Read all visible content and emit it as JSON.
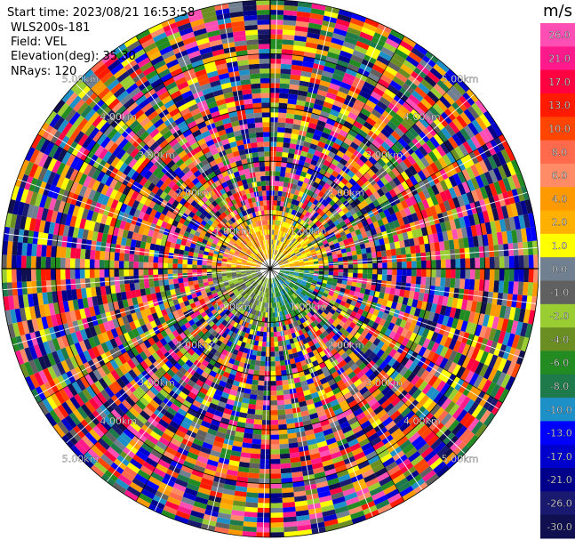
{
  "info": {
    "start_time": "Start time: 2023/08/21 16:53:58",
    "instrument": "WLS200s-181",
    "field": "Field: VEL",
    "elevation": "Elevation(deg): 35.30",
    "nrays": "NRays: 120"
  },
  "colorbar": {
    "unit": "m/s",
    "ticks": [
      "26.0",
      "21.0",
      "17.0",
      "13.0",
      "10.0",
      "8.0",
      "6.0",
      "4.0",
      "2.0",
      "1.0",
      "0.0",
      "-1.0",
      "-2.0",
      "-4.0",
      "-6.0",
      "-8.0",
      "-10.0",
      "-13.0",
      "-17.0",
      "-21.0",
      "-26.0",
      "-30.0"
    ],
    "colors": [
      "#ff4fb5",
      "#ff1a8c",
      "#ff0040",
      "#ff1a00",
      "#ff4500",
      "#ff6a4d",
      "#ff8c66",
      "#ff9900",
      "#ffb000",
      "#ffff00",
      "#708090",
      "#606060",
      "#9acd32",
      "#6b8e23",
      "#228b22",
      "#1e7a4a",
      "#1e90c8",
      "#0000ff",
      "#0000cd",
      "#00008b",
      "#191970",
      "#101050"
    ]
  },
  "chart_data": {
    "type": "ppi",
    "field": "VEL",
    "units": "m/s",
    "nrays": 120,
    "range_rings_km": [
      1.0,
      2.0,
      3.0,
      4.0,
      5.0
    ],
    "ring_labels": [
      "1.00km",
      "2.00km",
      "3.00km",
      "4.00km",
      "5.00km"
    ],
    "colorbar_range": [
      -30.0,
      26.0
    ]
  }
}
